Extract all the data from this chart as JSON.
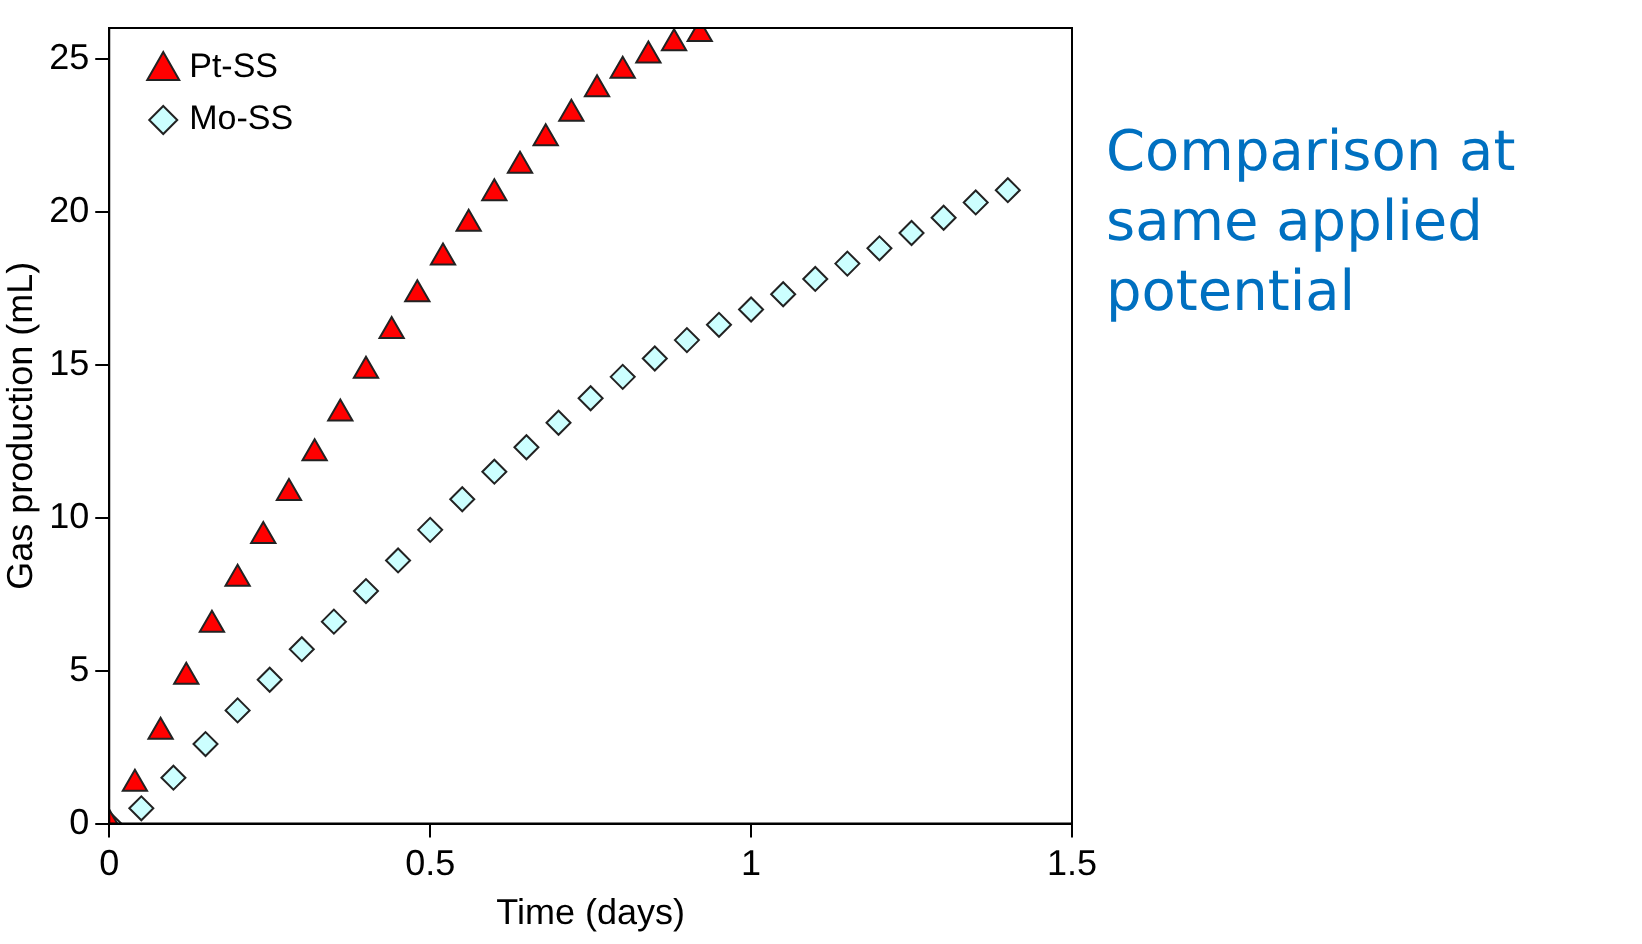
{
  "chart_data": {
    "type": "scatter",
    "xlabel": "Time (days)",
    "ylabel": "Gas production (mL)",
    "xlim": [
      0,
      1.5
    ],
    "xticks": [
      0,
      0.5,
      1,
      1.5
    ],
    "ylim": [
      0,
      26
    ],
    "yticks": [
      0,
      5,
      10,
      15,
      20,
      25
    ],
    "grid": false,
    "legend": "top left",
    "annotations": [
      "Comparison at same applied potential"
    ],
    "series": [
      {
        "name": "Pt-SS",
        "color": "#ff0000",
        "marker": "triangle",
        "x": [
          0,
          0.04,
          0.08,
          0.12,
          0.16,
          0.2,
          0.24,
          0.28,
          0.32,
          0.36,
          0.4,
          0.44,
          0.48,
          0.52,
          0.56,
          0.6,
          0.64,
          0.68,
          0.72,
          0.76,
          0.8,
          0.84,
          0.88,
          0.92
        ],
        "values": [
          0,
          1.3,
          3,
          4.8,
          6.5,
          8,
          9.4,
          10.8,
          12.1,
          13.4,
          14.8,
          16.1,
          17.3,
          18.5,
          19.6,
          20.6,
          21.5,
          22.4,
          23.2,
          24,
          24.6,
          25.1,
          25.5,
          25.8
        ]
      },
      {
        "name": "Mo-SS",
        "color": "#ccffff",
        "marker": "diamond",
        "x": [
          0,
          0.05,
          0.1,
          0.15,
          0.2,
          0.25,
          0.3,
          0.35,
          0.4,
          0.45,
          0.5,
          0.55,
          0.6,
          0.65,
          0.7,
          0.75,
          0.8,
          0.85,
          0.9,
          0.95,
          1,
          1.05,
          1.1,
          1.15,
          1.2,
          1.25,
          1.3,
          1.35,
          1.4
        ],
        "values": [
          0,
          0.5,
          1.5,
          2.6,
          3.7,
          4.7,
          5.7,
          6.6,
          7.6,
          8.6,
          9.6,
          10.6,
          11.5,
          12.3,
          13.1,
          13.9,
          14.6,
          15.2,
          15.8,
          16.3,
          16.8,
          17.3,
          17.8,
          18.3,
          18.8,
          19.3,
          19.8,
          20.3,
          20.7
        ]
      }
    ]
  }
}
